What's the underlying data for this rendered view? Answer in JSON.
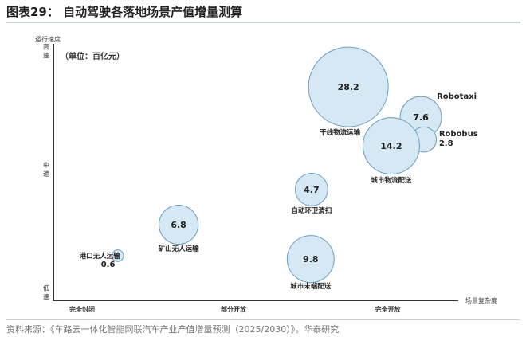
{
  "title": "图表29：  自动驾驶各落地场景产值增量测算",
  "source": "资料来源：《车路云一体化智能网联汽车产业产值增量预测（2025/2030）》，华泰研究",
  "chart_data": {
    "type": "bubble",
    "unit_note": "（单位：百亿元）",
    "ylabel": "运行速度",
    "xlabel": "场景复杂度",
    "xlim": [
      0,
      100
    ],
    "ylim": [
      0,
      100
    ],
    "xticks": [
      {
        "value": 6.7,
        "label": "完全封闭"
      },
      {
        "value": 42,
        "label": "部分开放"
      },
      {
        "value": 78,
        "label": "完全开放"
      }
    ],
    "yticks": [
      {
        "value": 97,
        "label": "高速"
      },
      {
        "value": 51,
        "label": "中速"
      },
      {
        "value": 3,
        "label": "低速"
      }
    ],
    "bubble_fill": "#d6e8f3",
    "bubble_stroke": "#6a9ec0",
    "points": [
      {
        "name": "干线物流运输",
        "value": 28.2,
        "x": 68.8,
        "y": 83.2
      },
      {
        "name": "Robotaxi",
        "value": 7.6,
        "x": 85.7,
        "y": 71.4
      },
      {
        "name": "Robobus",
        "value": 2.8,
        "x": 86.4,
        "y": 62.7
      },
      {
        "name": "城市物流配送",
        "value": 14.2,
        "x": 78.8,
        "y": 60.2
      },
      {
        "name": "自动环卫清扫",
        "value": 4.7,
        "x": 60.2,
        "y": 43.2
      },
      {
        "name": "矿山无人运输",
        "value": 6.8,
        "x": 29.2,
        "y": 29.5
      },
      {
        "name": "城市末端配送",
        "value": 9.8,
        "x": 60.0,
        "y": 16.1
      },
      {
        "name": "港口无人运输",
        "value": 0.6,
        "x": 15.0,
        "y": 17.4
      }
    ]
  }
}
